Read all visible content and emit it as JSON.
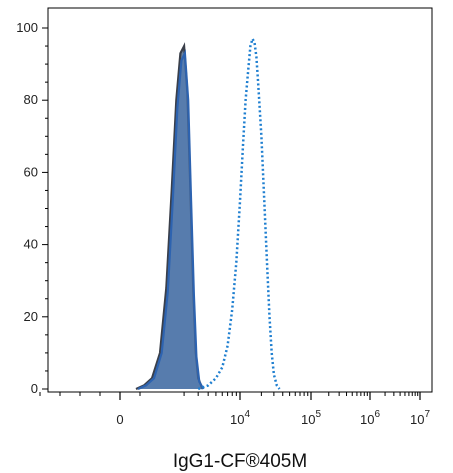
{
  "chart_data": {
    "type": "area",
    "xlabel": "IgG1-CF®405M",
    "ylabel": "",
    "x_scale": "biexponential",
    "ylim": [
      0,
      100
    ],
    "y_ticks": [
      {
        "value": 0,
        "label": "0"
      },
      {
        "value": 20,
        "label": "20"
      },
      {
        "value": 40,
        "label": "40"
      },
      {
        "value": 60,
        "label": "60"
      },
      {
        "value": 80,
        "label": "80"
      },
      {
        "value": 100,
        "label": "100"
      }
    ],
    "x_ticks": [
      {
        "value": 0,
        "base": "0",
        "exp": ""
      },
      {
        "value": 10000,
        "base": "10",
        "exp": "4"
      },
      {
        "value": 100000,
        "base": "10",
        "exp": "5"
      },
      {
        "value": 1000000,
        "base": "10",
        "exp": "6"
      },
      {
        "value": 10000000,
        "base": "10",
        "exp": "7"
      }
    ],
    "grid": false,
    "series": [
      {
        "style": "filled",
        "fill_color": "#5f7a9b",
        "line_color": "#3a3f4a",
        "x": [
          400,
          600,
          800,
          1000,
          1200,
          1400,
          1600,
          1800,
          2000,
          2200,
          2400,
          2600,
          2800,
          3000,
          3400
        ],
        "y": [
          0,
          1,
          3,
          10,
          28,
          55,
          80,
          93,
          95,
          82,
          55,
          28,
          10,
          3,
          0
        ]
      },
      {
        "style": "filled",
        "fill_color": "#4a78b8",
        "line_color": "#2d63b0",
        "x": [
          450,
          650,
          850,
          1050,
          1250,
          1450,
          1650,
          1850,
          2050,
          2250,
          2450,
          2650,
          2850,
          3100,
          3500
        ],
        "y": [
          0,
          1,
          3,
          10,
          27,
          53,
          78,
          91,
          93,
          80,
          52,
          26,
          9,
          2,
          0
        ]
      },
      {
        "style": "dotted",
        "line_color": "#1f7fd0",
        "x": [
          3000,
          4000,
          5000,
          6000,
          7000,
          8000,
          9000,
          10000,
          11000,
          12000,
          13000,
          14000,
          15000,
          16000,
          17000,
          18000,
          20000,
          22000,
          24000,
          26000,
          28000,
          30000,
          33000,
          36000
        ],
        "y": [
          0,
          1,
          3,
          6,
          12,
          22,
          35,
          52,
          67,
          80,
          88,
          95,
          97,
          96,
          92,
          85,
          70,
          52,
          35,
          20,
          10,
          4,
          1,
          0
        ]
      }
    ]
  }
}
